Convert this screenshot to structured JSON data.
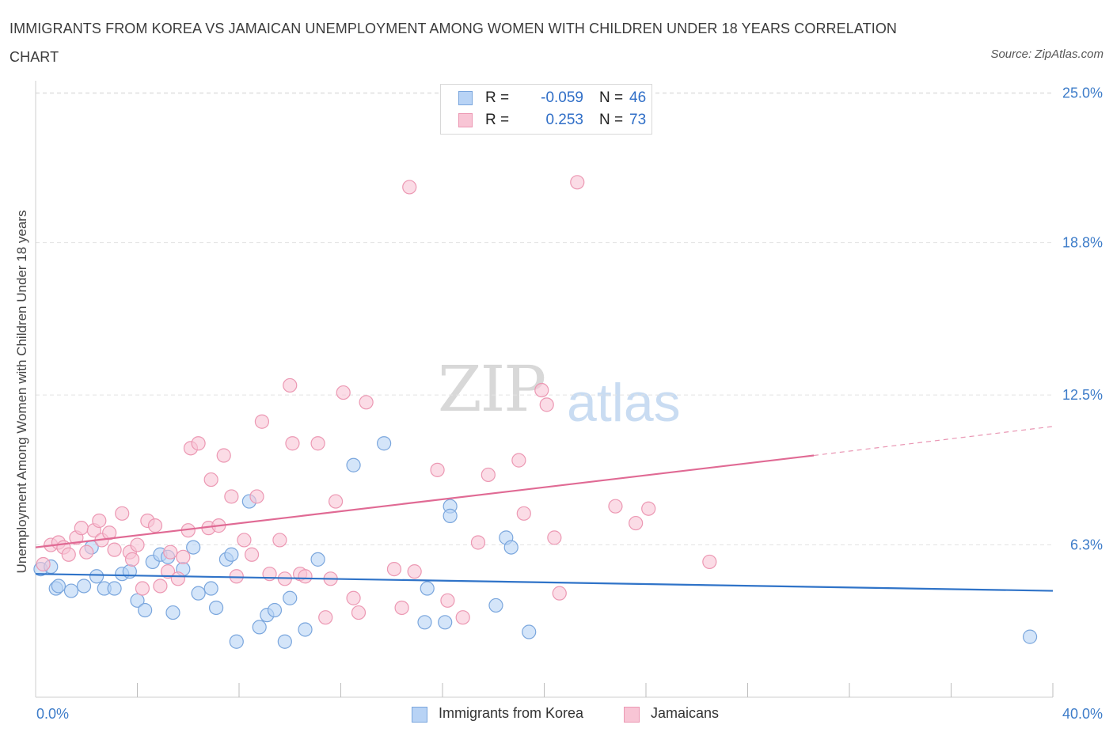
{
  "title": "IMMIGRANTS FROM KOREA VS JAMAICAN UNEMPLOYMENT AMONG WOMEN WITH CHILDREN UNDER 18 YEARS CORRELATION CHART",
  "source": "Source: ZipAtlas.com",
  "watermark": {
    "zip": "ZIP",
    "atlas": "atlas"
  },
  "colors": {
    "korea_fill": "#b8d3f5",
    "korea_stroke": "#7aa6dd",
    "korea_line": "#2f73c8",
    "jam_fill": "#f8c5d5",
    "jam_stroke": "#ec98b3",
    "jam_line": "#e06a94",
    "axis_text": "#3d7cc9",
    "grid": "#e3e3e3"
  },
  "stats": {
    "korea": {
      "r_label": "R =",
      "r": "-0.059",
      "n_label": "N =",
      "n": "46"
    },
    "jamaicans": {
      "r_label": "R =",
      "r": "0.253",
      "n_label": "N =",
      "n": "73"
    }
  },
  "legend": {
    "korea": "Immigrants from Korea",
    "jamaicans": "Jamaicans"
  },
  "chart_data": {
    "type": "scatter",
    "title": "IMMIGRANTS FROM KOREA VS JAMAICAN UNEMPLOYMENT AMONG WOMEN WITH CHILDREN UNDER 18 YEARS CORRELATION CHART",
    "xlabel": "",
    "ylabel": "Unemployment Among Women with Children Under 18 years",
    "xlim": [
      0,
      40
    ],
    "ylim": [
      0,
      25.5
    ],
    "x_tick_labels": [
      "0.0%",
      "40.0%"
    ],
    "y_ticks": [
      6.3,
      12.5,
      18.8,
      25.0
    ],
    "y_tick_labels": [
      "6.3%",
      "12.5%",
      "18.8%",
      "25.0%"
    ],
    "grid": true,
    "legend_position": "bottom",
    "series": [
      {
        "name": "Immigrants from Korea",
        "points": [
          [
            0.2,
            5.3
          ],
          [
            0.6,
            5.4
          ],
          [
            0.8,
            4.5
          ],
          [
            0.9,
            4.6
          ],
          [
            1.4,
            4.4
          ],
          [
            1.9,
            4.6
          ],
          [
            2.2,
            6.2
          ],
          [
            2.4,
            5.0
          ],
          [
            2.7,
            4.5
          ],
          [
            3.1,
            4.5
          ],
          [
            3.4,
            5.1
          ],
          [
            3.7,
            5.2
          ],
          [
            4.0,
            4.0
          ],
          [
            4.3,
            3.6
          ],
          [
            4.6,
            5.6
          ],
          [
            4.9,
            5.9
          ],
          [
            5.2,
            5.8
          ],
          [
            5.4,
            3.5
          ],
          [
            5.8,
            5.3
          ],
          [
            6.2,
            6.2
          ],
          [
            6.4,
            4.3
          ],
          [
            6.9,
            4.5
          ],
          [
            7.1,
            3.7
          ],
          [
            7.5,
            5.7
          ],
          [
            7.7,
            5.9
          ],
          [
            7.9,
            2.3
          ],
          [
            8.4,
            8.1
          ],
          [
            8.8,
            2.9
          ],
          [
            9.1,
            3.4
          ],
          [
            9.4,
            3.6
          ],
          [
            9.8,
            2.3
          ],
          [
            10.0,
            4.1
          ],
          [
            10.6,
            2.8
          ],
          [
            11.1,
            5.7
          ],
          [
            12.5,
            9.6
          ],
          [
            13.7,
            10.5
          ],
          [
            15.4,
            4.5
          ],
          [
            15.3,
            3.1
          ],
          [
            16.1,
            3.1
          ],
          [
            16.3,
            7.9
          ],
          [
            16.3,
            7.5
          ],
          [
            18.1,
            3.8
          ],
          [
            18.5,
            6.6
          ],
          [
            18.7,
            6.2
          ],
          [
            19.4,
            2.7
          ],
          [
            39.1,
            2.5
          ]
        ]
      },
      {
        "name": "Jamaicans",
        "points": [
          [
            0.3,
            5.5
          ],
          [
            0.6,
            6.3
          ],
          [
            0.9,
            6.4
          ],
          [
            1.1,
            6.2
          ],
          [
            1.3,
            5.9
          ],
          [
            1.6,
            6.6
          ],
          [
            1.8,
            7.0
          ],
          [
            2.0,
            6.0
          ],
          [
            2.3,
            6.9
          ],
          [
            2.5,
            7.3
          ],
          [
            2.6,
            6.5
          ],
          [
            2.9,
            6.8
          ],
          [
            3.1,
            6.1
          ],
          [
            3.4,
            7.6
          ],
          [
            3.7,
            6.0
          ],
          [
            3.8,
            5.7
          ],
          [
            4.0,
            6.3
          ],
          [
            4.2,
            4.5
          ],
          [
            4.4,
            7.3
          ],
          [
            4.7,
            7.1
          ],
          [
            4.9,
            4.6
          ],
          [
            5.2,
            5.2
          ],
          [
            5.3,
            6.0
          ],
          [
            5.6,
            4.9
          ],
          [
            5.8,
            5.8
          ],
          [
            6.0,
            6.9
          ],
          [
            6.1,
            10.3
          ],
          [
            6.4,
            10.5
          ],
          [
            6.8,
            7.0
          ],
          [
            6.9,
            9.0
          ],
          [
            7.2,
            7.1
          ],
          [
            7.4,
            10.0
          ],
          [
            7.7,
            8.3
          ],
          [
            7.9,
            5.0
          ],
          [
            8.2,
            6.5
          ],
          [
            8.5,
            5.9
          ],
          [
            8.7,
            8.3
          ],
          [
            8.9,
            11.4
          ],
          [
            9.2,
            5.1
          ],
          [
            9.6,
            6.5
          ],
          [
            9.8,
            4.9
          ],
          [
            10.0,
            12.9
          ],
          [
            10.1,
            10.5
          ],
          [
            10.4,
            5.1
          ],
          [
            10.6,
            5.0
          ],
          [
            11.1,
            10.5
          ],
          [
            11.4,
            3.3
          ],
          [
            11.6,
            4.9
          ],
          [
            11.8,
            8.1
          ],
          [
            12.1,
            12.6
          ],
          [
            12.5,
            4.1
          ],
          [
            12.7,
            3.5
          ],
          [
            13.0,
            12.2
          ],
          [
            14.1,
            5.3
          ],
          [
            14.4,
            3.7
          ],
          [
            14.7,
            21.1
          ],
          [
            14.9,
            5.2
          ],
          [
            15.8,
            9.4
          ],
          [
            16.2,
            4.0
          ],
          [
            16.8,
            3.3
          ],
          [
            17.4,
            6.4
          ],
          [
            17.8,
            9.2
          ],
          [
            19.0,
            9.8
          ],
          [
            19.2,
            7.6
          ],
          [
            19.9,
            12.7
          ],
          [
            20.1,
            12.1
          ],
          [
            20.4,
            6.6
          ],
          [
            20.6,
            4.3
          ],
          [
            21.3,
            21.3
          ],
          [
            22.8,
            7.9
          ],
          [
            23.6,
            7.2
          ],
          [
            24.1,
            7.8
          ],
          [
            26.5,
            5.6
          ]
        ]
      }
    ],
    "trendlines": [
      {
        "series": "Immigrants from Korea",
        "x": [
          0,
          40
        ],
        "y": [
          5.1,
          4.4
        ]
      },
      {
        "series": "Jamaicans",
        "x": [
          0,
          30.6,
          40
        ],
        "y": [
          6.2,
          10.0,
          11.2
        ],
        "dashed_from_x": 30.6
      }
    ]
  }
}
